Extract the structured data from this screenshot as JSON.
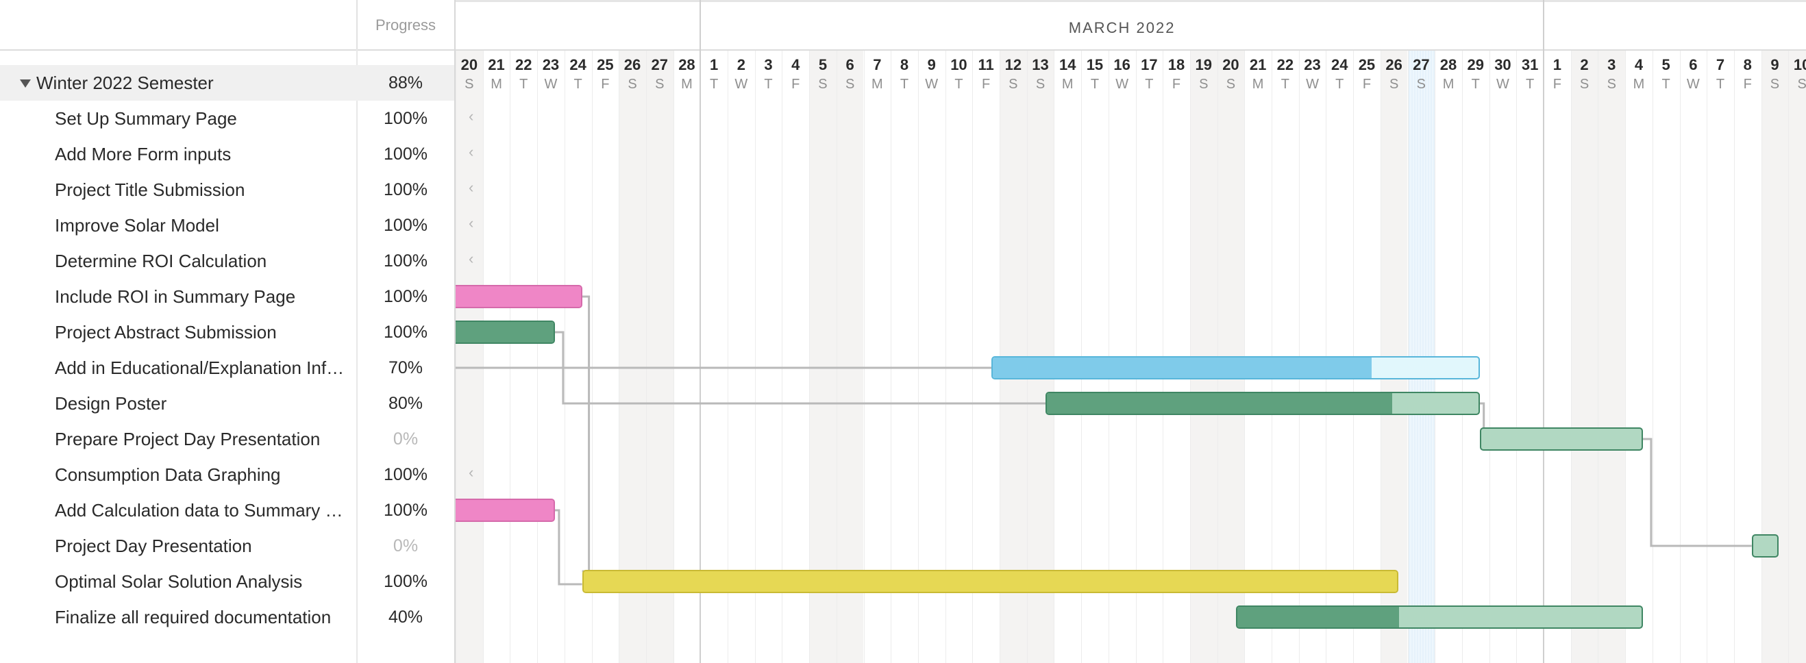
{
  "header": {
    "progress_label": "Progress"
  },
  "timeline": {
    "month_label": "MARCH 2022",
    "days": [
      {
        "n": "20",
        "d": "S"
      },
      {
        "n": "21",
        "d": "M"
      },
      {
        "n": "22",
        "d": "T"
      },
      {
        "n": "23",
        "d": "W"
      },
      {
        "n": "24",
        "d": "T"
      },
      {
        "n": "25",
        "d": "F"
      },
      {
        "n": "26",
        "d": "S"
      },
      {
        "n": "27",
        "d": "S"
      },
      {
        "n": "28",
        "d": "M"
      },
      {
        "n": "1",
        "d": "T"
      },
      {
        "n": "2",
        "d": "W"
      },
      {
        "n": "3",
        "d": "T"
      },
      {
        "n": "4",
        "d": "F"
      },
      {
        "n": "5",
        "d": "S"
      },
      {
        "n": "6",
        "d": "S"
      },
      {
        "n": "7",
        "d": "M"
      },
      {
        "n": "8",
        "d": "T"
      },
      {
        "n": "9",
        "d": "W"
      },
      {
        "n": "10",
        "d": "T"
      },
      {
        "n": "11",
        "d": "F"
      },
      {
        "n": "12",
        "d": "S"
      },
      {
        "n": "13",
        "d": "S"
      },
      {
        "n": "14",
        "d": "M"
      },
      {
        "n": "15",
        "d": "T"
      },
      {
        "n": "16",
        "d": "W"
      },
      {
        "n": "17",
        "d": "T"
      },
      {
        "n": "18",
        "d": "F"
      },
      {
        "n": "19",
        "d": "S"
      },
      {
        "n": "20",
        "d": "S"
      },
      {
        "n": "21",
        "d": "M"
      },
      {
        "n": "22",
        "d": "T"
      },
      {
        "n": "23",
        "d": "W"
      },
      {
        "n": "24",
        "d": "T"
      },
      {
        "n": "25",
        "d": "F"
      },
      {
        "n": "26",
        "d": "S"
      },
      {
        "n": "27",
        "d": "S"
      },
      {
        "n": "28",
        "d": "M"
      },
      {
        "n": "29",
        "d": "T"
      },
      {
        "n": "30",
        "d": "W"
      },
      {
        "n": "31",
        "d": "T"
      },
      {
        "n": "1",
        "d": "F"
      },
      {
        "n": "2",
        "d": "S"
      },
      {
        "n": "3",
        "d": "S"
      },
      {
        "n": "4",
        "d": "M"
      },
      {
        "n": "5",
        "d": "T"
      },
      {
        "n": "6",
        "d": "W"
      },
      {
        "n": "7",
        "d": "T"
      },
      {
        "n": "8",
        "d": "F"
      },
      {
        "n": "9",
        "d": "S"
      },
      {
        "n": "10",
        "d": "S"
      }
    ],
    "today_day": "27"
  },
  "group": {
    "name": "Winter 2022 Semester",
    "progress": "88%"
  },
  "tasks": [
    {
      "name": "Set Up Summary Page",
      "progress": "100%"
    },
    {
      "name": "Add More Form inputs",
      "progress": "100%"
    },
    {
      "name": "Project Title Submission",
      "progress": "100%"
    },
    {
      "name": "Improve Solar Model",
      "progress": "100%"
    },
    {
      "name": "Determine ROI Calculation",
      "progress": "100%"
    },
    {
      "name": "Include ROI in Summary Page",
      "progress": "100%"
    },
    {
      "name": "Project Abstract Submission",
      "progress": "100%"
    },
    {
      "name": "Add in Educational/Explanation Infor...",
      "progress": "70%"
    },
    {
      "name": "Design Poster",
      "progress": "80%"
    },
    {
      "name": "Prepare Project Day Presentation",
      "progress": "0%"
    },
    {
      "name": "Consumption Data Graphing",
      "progress": "100%"
    },
    {
      "name": "Add Calculation data to Summary Pa...",
      "progress": "100%"
    },
    {
      "name": "Project Day Presentation",
      "progress": "0%"
    },
    {
      "name": "Optimal Solar Solution Analysis",
      "progress": "100%"
    },
    {
      "name": "Finalize all required documentation",
      "progress": "40%"
    }
  ],
  "colors": {
    "pink": "#ef86c6",
    "pink_border": "#d56aab",
    "green": "#5fa17e",
    "green_light": "#b1d8c2",
    "green_border": "#3f8663",
    "blue": "#7fcbea",
    "blue_light": "#e1f7fc",
    "blue_border": "#58b6da",
    "yellow": "#e6d854",
    "yellow_border": "#c9ba34",
    "link": "#b9b9b9"
  }
}
